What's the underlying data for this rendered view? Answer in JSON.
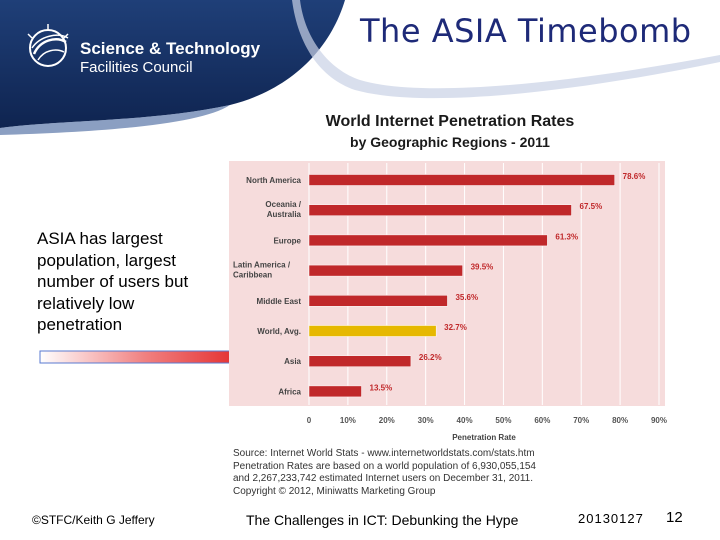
{
  "header": {
    "org_line1": "Science & Technology",
    "org_line2": "Facilities Council",
    "title": "The ASIA Timebomb"
  },
  "callout": {
    "text": "ASIA has largest population, largest number of users but relatively low penetration"
  },
  "chart_data": {
    "type": "bar",
    "orientation": "horizontal",
    "title": "World Internet Penetration Rates",
    "subtitle": "by Geographic Regions - 2011",
    "categories": [
      "North America",
      "Oceania / Australia",
      "Europe",
      "Latin America / Caribbean",
      "Middle East",
      "World, Avg.",
      "Asia",
      "Africa"
    ],
    "values": [
      78.6,
      67.5,
      61.3,
      39.5,
      35.6,
      32.7,
      26.2,
      13.5
    ],
    "value_labels": [
      "78.6%",
      "67.5%",
      "61.3%",
      "39.5%",
      "35.6%",
      "32.7%",
      "26.2%",
      "13.5%"
    ],
    "highlight": "World, Avg.",
    "xlabel": "Penetration Rate",
    "xlim": [
      0,
      90
    ],
    "xticks": [
      "0",
      "10%",
      "20%",
      "30%",
      "40%",
      "50%",
      "60%",
      "70%",
      "80%",
      "90%"
    ],
    "bar_color": "#c0282a",
    "highlight_color": "#e6b800"
  },
  "source": {
    "lines": [
      "Source: Internet World Stats - www.internetworldstats.com/stats.htm",
      "Penetration Rates are based on a world population of 6,930,055,154",
      "and 2,267,233,742 estimated Internet users on December 31, 2011.",
      "Copyright © 2012, Miniwatts Marketing Group"
    ]
  },
  "footer": {
    "copyright": "©STFC/Keith G Jeffery",
    "title": "The Challenges in ICT: Debunking the Hype",
    "date": "20130127",
    "page": "12"
  }
}
